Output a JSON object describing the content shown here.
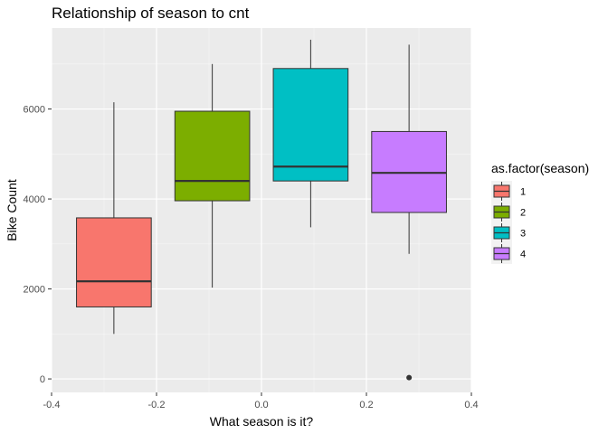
{
  "chart_data": {
    "type": "boxplot",
    "title": "Relationship of season to cnt",
    "xlabel": "What season is it?",
    "ylabel": "Bike Count",
    "xlim": [
      -0.4,
      0.4
    ],
    "ylim": [
      -300,
      7800
    ],
    "x_ticks": [
      -0.4,
      -0.2,
      0.0,
      0.2,
      0.4
    ],
    "x_tick_labels": [
      "-0.4",
      "-0.2",
      "0.0",
      "0.2",
      "0.4"
    ],
    "y_ticks": [
      0,
      2000,
      4000,
      6000
    ],
    "y_tick_labels": [
      "0",
      "2000",
      "4000",
      "6000"
    ],
    "grid": true,
    "legend": {
      "title": "as.factor(season)",
      "position": "right"
    },
    "series": [
      {
        "name": "1",
        "color": "#F8766D",
        "x_center": -0.28125,
        "box_width": 0.1425,
        "whisker_low": 1000,
        "q1": 1600,
        "median": 2170,
        "q3": 3580,
        "whisker_high": 6150,
        "outliers": []
      },
      {
        "name": "2",
        "color": "#7CAE00",
        "x_center": -0.09375,
        "box_width": 0.1425,
        "whisker_low": 2030,
        "q1": 3960,
        "median": 4400,
        "q3": 5950,
        "whisker_high": 7000,
        "outliers": []
      },
      {
        "name": "3",
        "color": "#00BFC4",
        "x_center": 0.09375,
        "box_width": 0.1425,
        "whisker_low": 3370,
        "q1": 4400,
        "median": 4720,
        "q3": 6900,
        "whisker_high": 7540,
        "outliers": []
      },
      {
        "name": "4",
        "color": "#C77CFF",
        "x_center": 0.28125,
        "box_width": 0.1425,
        "whisker_low": 2780,
        "q1": 3700,
        "median": 4580,
        "q3": 5500,
        "whisker_high": 7430,
        "outliers": [
          30
        ]
      }
    ]
  }
}
